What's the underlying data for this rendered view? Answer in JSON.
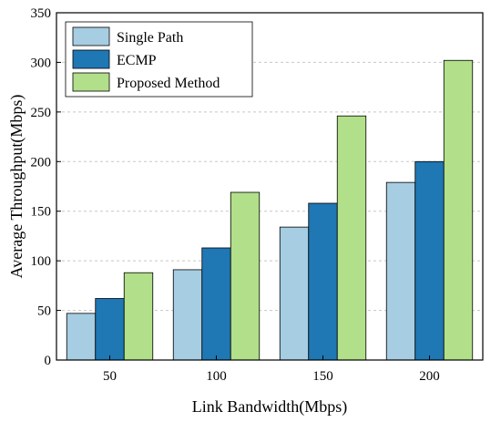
{
  "chart_data": {
    "type": "bar",
    "categories": [
      "50",
      "100",
      "150",
      "200"
    ],
    "series": [
      {
        "name": "Single Path",
        "values": [
          47,
          91,
          134,
          179
        ],
        "color": "#a6cde2"
      },
      {
        "name": "ECMP",
        "values": [
          62,
          113,
          158,
          200
        ],
        "color": "#1f77b4"
      },
      {
        "name": "Proposed Method",
        "values": [
          88,
          169,
          246,
          302
        ],
        "color": "#b2df8a"
      }
    ],
    "xlabel": "Link Bandwidth(Mbps)",
    "ylabel": "Average Throughput(Mbps)",
    "ylim": [
      0,
      350
    ],
    "yticks": [
      0,
      50,
      100,
      150,
      200,
      250,
      300,
      350
    ],
    "grid": true,
    "legend_position": "top-left"
  }
}
